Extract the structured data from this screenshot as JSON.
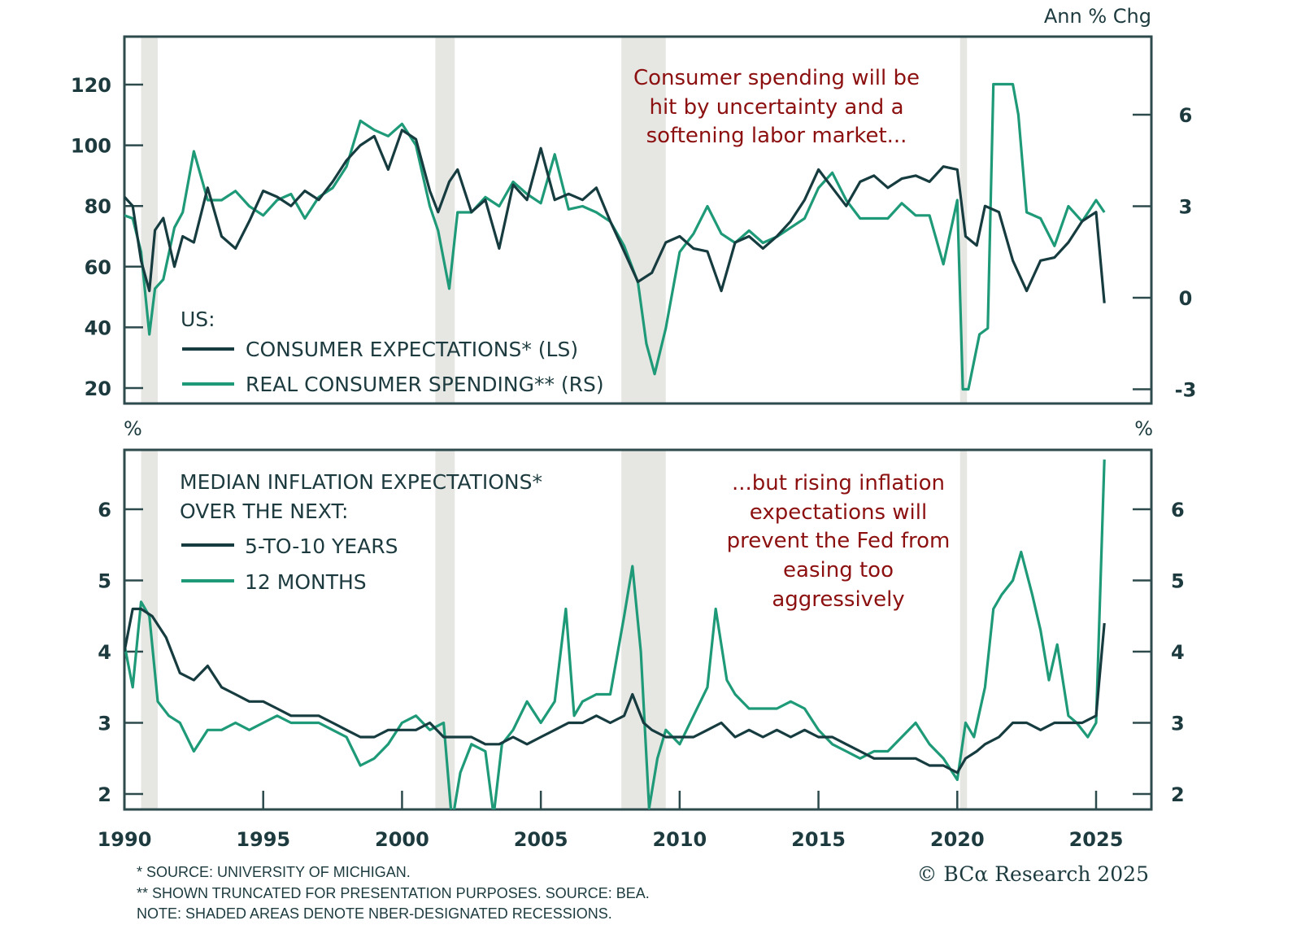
{
  "chart_data": [
    {
      "type": "line",
      "panel": "top",
      "title": "",
      "right_unit": "Ann % Chg",
      "x_range": [
        1990,
        2027
      ],
      "y_left_range": [
        15,
        135
      ],
      "y_left_ticks": [
        20,
        40,
        60,
        80,
        100,
        120
      ],
      "y_right_range": [
        -3.4,
        8.0
      ],
      "y_right_ticks": [
        -3,
        0,
        3,
        6
      ],
      "legend_title": "US:",
      "legend_position": "bottom-left",
      "annotation": [
        "Consumer spending will be",
        "hit by uncertainty and a",
        "softening labor market..."
      ],
      "series": [
        {
          "name": "CONSUMER EXPECTATIONS* (LS)",
          "axis": "left",
          "color": "#163c40",
          "x": [
            1990.0,
            1990.3,
            1990.6,
            1990.9,
            1991.1,
            1991.4,
            1991.8,
            1992.1,
            1992.5,
            1993.0,
            1993.5,
            1994.0,
            1994.5,
            1995.0,
            1995.5,
            1996.0,
            1996.5,
            1997.0,
            1997.5,
            1998.0,
            1998.5,
            1999.0,
            1999.5,
            2000.0,
            2000.5,
            2001.0,
            2001.3,
            2001.7,
            2002.0,
            2002.5,
            2003.0,
            2003.5,
            2004.0,
            2004.5,
            2005.0,
            2005.5,
            2006.0,
            2006.5,
            2007.0,
            2007.5,
            2008.0,
            2008.5,
            2009.0,
            2009.5,
            2010.0,
            2010.5,
            2011.0,
            2011.5,
            2012.0,
            2012.5,
            2013.0,
            2013.5,
            2014.0,
            2014.5,
            2015.0,
            2015.5,
            2016.0,
            2016.5,
            2017.0,
            2017.5,
            2018.0,
            2018.5,
            2019.0,
            2019.5,
            2020.0,
            2020.3,
            2020.7,
            2021.0,
            2021.5,
            2022.0,
            2022.5,
            2023.0,
            2023.5,
            2024.0,
            2024.5,
            2025.0,
            2025.3
          ],
          "values": [
            83,
            80,
            62,
            52,
            72,
            76,
            60,
            70,
            68,
            86,
            70,
            66,
            75,
            85,
            83,
            80,
            85,
            82,
            88,
            95,
            100,
            103,
            92,
            105,
            102,
            85,
            78,
            88,
            92,
            78,
            82,
            66,
            87,
            82,
            99,
            82,
            84,
            82,
            86,
            75,
            65,
            55,
            58,
            68,
            70,
            66,
            65,
            52,
            68,
            70,
            66,
            70,
            75,
            82,
            92,
            86,
            80,
            88,
            90,
            86,
            89,
            90,
            88,
            93,
            92,
            70,
            67,
            80,
            78,
            62,
            52,
            62,
            63,
            68,
            75,
            78,
            48
          ]
        },
        {
          "name": "REAL CONSUMER SPENDING** (RS)",
          "axis": "right",
          "color": "#1e9a78",
          "x": [
            1990.0,
            1990.3,
            1990.6,
            1990.9,
            1991.1,
            1991.4,
            1991.8,
            1992.1,
            1992.5,
            1993.0,
            1993.5,
            1994.0,
            1994.5,
            1995.0,
            1995.5,
            1996.0,
            1996.5,
            1997.0,
            1997.5,
            1998.0,
            1998.5,
            1999.0,
            1999.5,
            2000.0,
            2000.5,
            2001.0,
            2001.3,
            2001.7,
            2002.0,
            2002.5,
            2003.0,
            2003.5,
            2004.0,
            2004.5,
            2005.0,
            2005.5,
            2006.0,
            2006.5,
            2007.0,
            2007.5,
            2008.0,
            2008.5,
            2008.8,
            2009.1,
            2009.5,
            2010.0,
            2010.5,
            2011.0,
            2011.5,
            2012.0,
            2012.5,
            2013.0,
            2013.5,
            2014.0,
            2014.5,
            2015.0,
            2015.5,
            2016.0,
            2016.5,
            2017.0,
            2017.5,
            2018.0,
            2018.5,
            2019.0,
            2019.5,
            2020.0,
            2020.2,
            2020.4,
            2020.8,
            2021.1,
            2021.3,
            2021.7,
            2022.0,
            2022.2,
            2022.5,
            2023.0,
            2023.5,
            2024.0,
            2024.5,
            2025.0,
            2025.3
          ],
          "values": [
            2.7,
            2.6,
            1.5,
            -1.2,
            0.3,
            0.6,
            2.3,
            2.8,
            4.8,
            3.2,
            3.2,
            3.5,
            3.0,
            2.7,
            3.2,
            3.4,
            2.6,
            3.3,
            3.6,
            4.3,
            5.8,
            5.5,
            5.3,
            5.7,
            5.0,
            3.0,
            2.2,
            0.3,
            2.8,
            2.8,
            3.3,
            3.0,
            3.8,
            3.4,
            3.1,
            4.7,
            2.9,
            3.0,
            2.8,
            2.5,
            1.7,
            0.5,
            -1.5,
            -2.5,
            -1.0,
            1.5,
            2.1,
            3.0,
            2.1,
            1.8,
            2.2,
            1.8,
            2.0,
            2.3,
            2.6,
            3.6,
            4.1,
            3.2,
            2.6,
            2.6,
            2.6,
            3.1,
            2.7,
            2.7,
            1.1,
            3.2,
            -3.0,
            -3.0,
            -1.2,
            -1.0,
            7.0,
            7.0,
            7.0,
            6.0,
            2.8,
            2.6,
            1.7,
            3.0,
            2.5,
            3.2,
            2.8
          ]
        }
      ]
    },
    {
      "type": "line",
      "panel": "bottom",
      "left_unit": "%",
      "right_unit": "%",
      "x_range": [
        1990,
        2027
      ],
      "x_ticks": [
        1990,
        1995,
        2000,
        2005,
        2010,
        2015,
        2020,
        2025
      ],
      "y_range": [
        1.78,
        6.85
      ],
      "y_ticks": [
        2,
        3,
        4,
        5,
        6
      ],
      "legend_title": [
        "MEDIAN INFLATION EXPECTATIONS*",
        "OVER THE NEXT:"
      ],
      "legend_position": "top-left",
      "annotation": [
        "...but rising inflation",
        "expectations will",
        "prevent the Fed from",
        "easing too",
        "aggressively"
      ],
      "series": [
        {
          "name": "5-TO-10 YEARS",
          "color": "#163c40",
          "x": [
            1990.0,
            1990.3,
            1990.6,
            1991.0,
            1991.5,
            1992.0,
            1992.5,
            1993.0,
            1993.5,
            1994.0,
            1994.5,
            1995.0,
            1995.5,
            1996.0,
            1996.5,
            1997.0,
            1997.5,
            1998.0,
            1998.5,
            1999.0,
            1999.5,
            2000.0,
            2000.5,
            2001.0,
            2001.5,
            2002.0,
            2002.5,
            2003.0,
            2003.5,
            2004.0,
            2004.5,
            2005.0,
            2005.5,
            2006.0,
            2006.5,
            2007.0,
            2007.5,
            2008.0,
            2008.3,
            2008.7,
            2009.0,
            2009.5,
            2010.0,
            2010.5,
            2011.0,
            2011.5,
            2012.0,
            2012.5,
            2013.0,
            2013.5,
            2014.0,
            2014.5,
            2015.0,
            2015.5,
            2016.0,
            2016.5,
            2017.0,
            2017.5,
            2018.0,
            2018.5,
            2019.0,
            2019.5,
            2020.0,
            2020.3,
            2020.7,
            2021.0,
            2021.5,
            2022.0,
            2022.5,
            2023.0,
            2023.5,
            2024.0,
            2024.5,
            2025.0,
            2025.3
          ],
          "values": [
            4.0,
            4.6,
            4.6,
            4.5,
            4.2,
            3.7,
            3.6,
            3.8,
            3.5,
            3.4,
            3.3,
            3.3,
            3.2,
            3.1,
            3.1,
            3.1,
            3.0,
            2.9,
            2.8,
            2.8,
            2.9,
            2.9,
            2.9,
            3.0,
            2.8,
            2.8,
            2.8,
            2.7,
            2.7,
            2.8,
            2.7,
            2.8,
            2.9,
            3.0,
            3.0,
            3.1,
            3.0,
            3.1,
            3.4,
            3.0,
            2.9,
            2.8,
            2.8,
            2.8,
            2.9,
            3.0,
            2.8,
            2.9,
            2.8,
            2.9,
            2.8,
            2.9,
            2.8,
            2.8,
            2.7,
            2.6,
            2.5,
            2.5,
            2.5,
            2.5,
            2.4,
            2.4,
            2.3,
            2.5,
            2.6,
            2.7,
            2.8,
            3.0,
            3.0,
            2.9,
            3.0,
            3.0,
            3.0,
            3.1,
            4.4
          ]
        },
        {
          "name": "12 MONTHS",
          "color": "#1e9a78",
          "x": [
            1990.0,
            1990.3,
            1990.6,
            1990.9,
            1991.2,
            1991.6,
            1992.0,
            1992.5,
            1993.0,
            1993.5,
            1994.0,
            1994.5,
            1995.0,
            1995.5,
            1996.0,
            1996.5,
            1997.0,
            1997.5,
            1998.0,
            1998.5,
            1999.0,
            1999.5,
            2000.0,
            2000.5,
            2001.0,
            2001.5,
            2001.8,
            2002.1,
            2002.5,
            2003.0,
            2003.3,
            2003.6,
            2004.0,
            2004.5,
            2005.0,
            2005.5,
            2005.9,
            2006.2,
            2006.5,
            2007.0,
            2007.5,
            2008.0,
            2008.3,
            2008.6,
            2008.9,
            2009.2,
            2009.5,
            2010.0,
            2010.5,
            2011.0,
            2011.3,
            2011.7,
            2012.0,
            2012.5,
            2013.0,
            2013.5,
            2014.0,
            2014.5,
            2015.0,
            2015.5,
            2016.0,
            2016.5,
            2017.0,
            2017.5,
            2018.0,
            2018.5,
            2019.0,
            2019.5,
            2020.0,
            2020.3,
            2020.6,
            2021.0,
            2021.3,
            2021.6,
            2022.0,
            2022.3,
            2022.7,
            2023.0,
            2023.3,
            2023.6,
            2024.0,
            2024.3,
            2024.7,
            2025.0,
            2025.3
          ],
          "values": [
            4.1,
            3.5,
            4.7,
            4.5,
            3.3,
            3.1,
            3.0,
            2.6,
            2.9,
            2.9,
            3.0,
            2.9,
            3.0,
            3.1,
            3.0,
            3.0,
            3.0,
            2.9,
            2.8,
            2.4,
            2.5,
            2.7,
            3.0,
            3.1,
            2.9,
            3.0,
            1.6,
            2.3,
            2.7,
            2.6,
            1.7,
            2.7,
            2.9,
            3.3,
            3.0,
            3.3,
            4.6,
            3.1,
            3.3,
            3.4,
            3.4,
            4.5,
            5.2,
            4.0,
            1.8,
            2.5,
            2.9,
            2.7,
            3.1,
            3.5,
            4.6,
            3.6,
            3.4,
            3.2,
            3.2,
            3.2,
            3.3,
            3.2,
            2.9,
            2.7,
            2.6,
            2.5,
            2.6,
            2.6,
            2.8,
            3.0,
            2.7,
            2.5,
            2.2,
            3.0,
            2.8,
            3.5,
            4.6,
            4.8,
            5.0,
            5.4,
            4.8,
            4.3,
            3.6,
            4.1,
            3.1,
            3.0,
            2.8,
            3.0,
            6.7
          ]
        }
      ]
    }
  ],
  "recessions": [
    [
      1990.6,
      1991.2
    ],
    [
      2001.2,
      2001.9
    ],
    [
      2007.9,
      2009.5
    ],
    [
      2020.1,
      2020.35
    ]
  ],
  "top_legend": {
    "title": "US:",
    "items": [
      "CONSUMER EXPECTATIONS* (LS)",
      "REAL CONSUMER SPENDING** (RS)"
    ]
  },
  "bottom_legend": {
    "title_line1": "MEDIAN INFLATION EXPECTATIONS*",
    "title_line2": "OVER THE NEXT:",
    "items": [
      "5-TO-10 YEARS",
      "12 MONTHS"
    ]
  },
  "labels": {
    "top_right_unit": "Ann % Chg",
    "bottom_left_unit": "%",
    "bottom_right_unit": "%"
  },
  "footnotes": [
    "* SOURCE: UNIVERSITY OF MICHIGAN.",
    "** SHOWN TRUNCATED FOR PRESENTATION PURPOSES. SOURCE: BEA.",
    "NOTE: SHADED AREAS DENOTE NBER-DESIGNATED RECESSIONS."
  ],
  "copyright": "© BCα Research 2025",
  "colors": {
    "dark_series": "#163c40",
    "green_series": "#1e9a78",
    "annotation": "#8c1010",
    "recession": "#e6e6e3",
    "frame": "#2d4a4d"
  }
}
